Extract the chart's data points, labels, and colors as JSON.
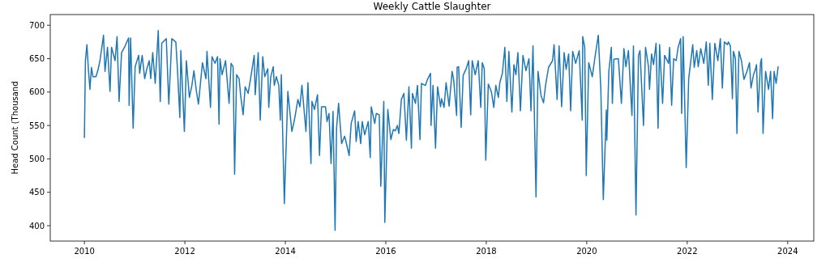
{
  "chart_data": {
    "type": "line",
    "title": "Weekly Cattle Slaughter",
    "ylabel": "Head Count (Thousand",
    "xlim": [
      2009.32,
      2024.52
    ],
    "xticks": [
      2010,
      2012,
      2014,
      2016,
      2018,
      2020,
      2022,
      2024
    ],
    "ylim": [
      377,
      716
    ],
    "yticks": [
      400,
      450,
      500,
      550,
      600,
      650,
      700
    ],
    "grid": false,
    "series": [
      {
        "color": "#1f77b4",
        "x": [
          2010.0,
          2010.02,
          2010.05,
          2010.08,
          2010.11,
          2010.14,
          2010.17,
          2010.23,
          2010.27,
          2010.31,
          2010.38,
          2010.41,
          2010.46,
          2010.51,
          2010.54,
          2010.61,
          2010.65,
          2010.69,
          2010.74,
          2010.81,
          2010.88,
          2010.89,
          2010.92,
          2010.97,
          2011.01,
          2011.08,
          2011.1,
          2011.15,
          2011.2,
          2011.24,
          2011.29,
          2011.32,
          2011.36,
          2011.41,
          2011.47,
          2011.51,
          2011.54,
          2011.63,
          2011.68,
          2011.74,
          2011.82,
          2011.85,
          2011.9,
          2011.92,
          2011.99,
          2012.03,
          2012.09,
          2012.14,
          2012.18,
          2012.23,
          2012.27,
          2012.35,
          2012.42,
          2012.44,
          2012.51,
          2012.54,
          2012.6,
          2012.65,
          2012.68,
          2012.7,
          2012.74,
          2012.81,
          2012.88,
          2012.92,
          2012.96,
          2012.99,
          2013.03,
          2013.08,
          2013.11,
          2013.16,
          2013.2,
          2013.26,
          2013.32,
          2013.38,
          2013.4,
          2013.46,
          2013.5,
          2013.55,
          2013.59,
          2013.65,
          2013.67,
          2013.71,
          2013.76,
          2013.78,
          2013.82,
          2013.87,
          2013.9,
          2013.92,
          2013.98,
          2014.05,
          2014.13,
          2014.18,
          2014.25,
          2014.29,
          2014.33,
          2014.41,
          2014.45,
          2014.51,
          2014.53,
          2014.58,
          2014.64,
          2014.68,
          2014.72,
          2014.8,
          2014.83,
          2014.87,
          2014.91,
          2014.95,
          2014.99,
          2015.02,
          2015.06,
          2015.12,
          2015.18,
          2015.22,
          2015.27,
          2015.31,
          2015.38,
          2015.41,
          2015.45,
          2015.5,
          2015.53,
          2015.58,
          2015.65,
          2015.69,
          2015.71,
          2015.78,
          2015.81,
          2015.87,
          2015.9,
          2015.96,
          2015.98,
          2016.04,
          2016.1,
          2016.15,
          2016.19,
          2016.23,
          2016.26,
          2016.31,
          2016.36,
          2016.41,
          2016.46,
          2016.51,
          2016.53,
          2016.59,
          2016.63,
          2016.68,
          2016.71,
          2016.79,
          2016.83,
          2016.89,
          2016.9,
          2016.94,
          2016.99,
          2017.03,
          2017.09,
          2017.11,
          2017.16,
          2017.2,
          2017.26,
          2017.32,
          2017.35,
          2017.41,
          2017.42,
          2017.45,
          2017.5,
          2017.54,
          2017.6,
          2017.65,
          2017.69,
          2017.72,
          2017.78,
          2017.84,
          2017.89,
          2017.92,
          2017.96,
          2017.99,
          2018.04,
          2018.1,
          2018.15,
          2018.19,
          2018.24,
          2018.27,
          2018.32,
          2018.37,
          2018.41,
          2018.45,
          2018.51,
          2018.55,
          2018.59,
          2018.63,
          2018.68,
          2018.73,
          2018.79,
          2018.85,
          2018.89,
          2018.93,
          2018.99,
          2019.03,
          2019.09,
          2019.14,
          2019.18,
          2019.24,
          2019.32,
          2019.35,
          2019.41,
          2019.45,
          2019.5,
          2019.55,
          2019.59,
          2019.64,
          2019.68,
          2019.72,
          2019.78,
          2019.85,
          2019.91,
          2019.92,
          2019.96,
          2019.99,
          2020.04,
          2020.11,
          2020.16,
          2020.23,
          2020.28,
          2020.33,
          2020.39,
          2020.4,
          2020.44,
          2020.49,
          2020.51,
          2020.54,
          2020.63,
          2020.69,
          2020.74,
          2020.78,
          2020.83,
          2020.9,
          2020.93,
          2020.98,
          2021.03,
          2021.06,
          2021.13,
          2021.17,
          2021.23,
          2021.25,
          2021.29,
          2021.33,
          2021.38,
          2021.42,
          2021.45,
          2021.51,
          2021.55,
          2021.63,
          2021.65,
          2021.69,
          2021.73,
          2021.78,
          2021.82,
          2021.87,
          2021.89,
          2021.92,
          2021.98,
          2022.03,
          2022.11,
          2022.14,
          2022.19,
          2022.22,
          2022.27,
          2022.33,
          2022.38,
          2022.42,
          2022.45,
          2022.5,
          2022.55,
          2022.61,
          2022.66,
          2022.7,
          2022.74,
          2022.8,
          2022.82,
          2022.86,
          2022.9,
          2022.92,
          2022.96,
          2022.99,
          2023.03,
          2023.08,
          2023.13,
          2023.19,
          2023.24,
          2023.27,
          2023.32,
          2023.35,
          2023.38,
          2023.41,
          2023.46,
          2023.48,
          2023.51,
          2023.56,
          2023.62,
          2023.66,
          2023.7,
          2023.73,
          2023.77,
          2023.79,
          2023.81
        ],
        "values": [
          532,
          647,
          671,
          633,
          604,
          637,
          623,
          623,
          633,
          647,
          685,
          631,
          667,
          601,
          667,
          647,
          683,
          586,
          659,
          669,
          681,
          580,
          681,
          546,
          638,
          655,
          628,
          655,
          620,
          634,
          647,
          620,
          659,
          613,
          692,
          586,
          673,
          680,
          582,
          680,
          675,
          637,
          562,
          662,
          541,
          647,
          592,
          610,
          632,
          601,
          582,
          644,
          620,
          661,
          577,
          653,
          643,
          653,
          552,
          650,
          626,
          647,
          583,
          643,
          638,
          477,
          626,
          620,
          595,
          566,
          608,
          598,
          626,
          655,
          596,
          659,
          558,
          653,
          623,
          635,
          577,
          623,
          638,
          610,
          623,
          610,
          558,
          626,
          433,
          601,
          541,
          558,
          589,
          578,
          610,
          541,
          614,
          493,
          586,
          574,
          596,
          505,
          578,
          578,
          556,
          568,
          493,
          571,
          393,
          546,
          583,
          523,
          534,
          522,
          505,
          553,
          572,
          526,
          556,
          523,
          556,
          536,
          556,
          502,
          578,
          553,
          568,
          566,
          459,
          586,
          405,
          574,
          529,
          544,
          542,
          550,
          538,
          589,
          598,
          528,
          608,
          516,
          598,
          583,
          610,
          529,
          613,
          610,
          619,
          628,
          550,
          610,
          516,
          608,
          578,
          590,
          577,
          614,
          579,
          631,
          619,
          565,
          637,
          638,
          547,
          625,
          635,
          647,
          566,
          647,
          626,
          647,
          577,
          644,
          635,
          498,
          612,
          601,
          577,
          610,
          592,
          614,
          628,
          667,
          586,
          661,
          570,
          641,
          626,
          659,
          572,
          655,
          632,
          650,
          572,
          669,
          443,
          631,
          595,
          584,
          610,
          637,
          647,
          671,
          589,
          669,
          578,
          659,
          634,
          657,
          572,
          661,
          643,
          662,
          558,
          683,
          667,
          475,
          644,
          623,
          650,
          685,
          606,
          439,
          573,
          528,
          631,
          667,
          583,
          649,
          650,
          583,
          665,
          638,
          662,
          565,
          669,
          416,
          655,
          662,
          550,
          667,
          638,
          604,
          657,
          641,
          673,
          546,
          671,
          583,
          655,
          643,
          667,
          580,
          650,
          647,
          667,
          680,
          568,
          683,
          487,
          620,
          671,
          637,
          662,
          638,
          665,
          643,
          675,
          610,
          673,
          589,
          673,
          647,
          680,
          606,
          675,
          671,
          675,
          669,
          590,
          661,
          650,
          538,
          661,
          647,
          619,
          631,
          644,
          606,
          626,
          632,
          641,
          570,
          644,
          650,
          538,
          631,
          604,
          631,
          560,
          631,
          613,
          625,
          638
        ]
      }
    ]
  }
}
